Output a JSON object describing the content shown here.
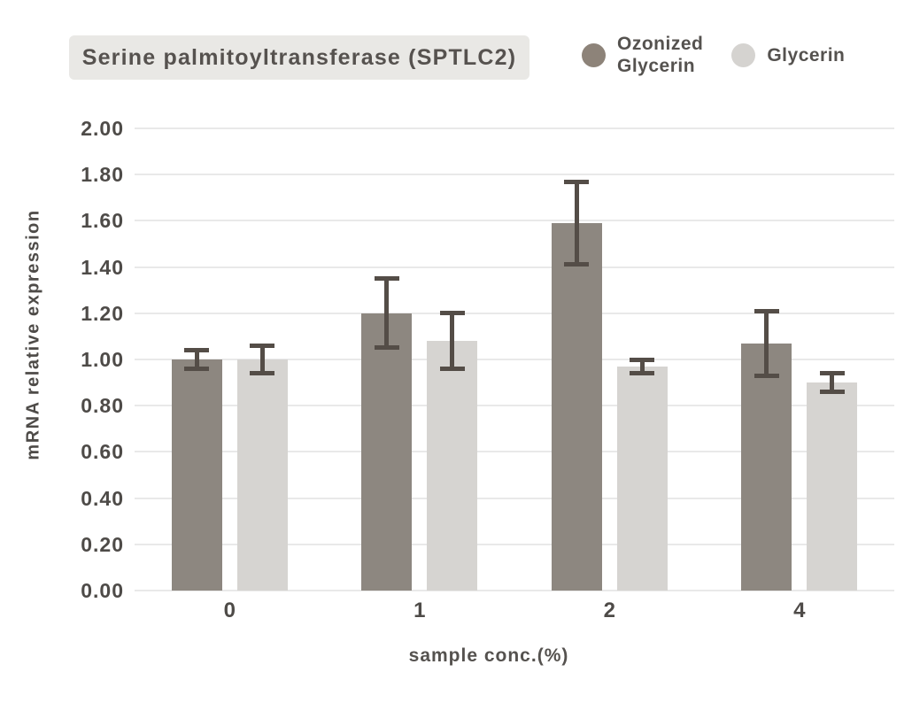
{
  "title": {
    "label": "Serine palmitoyltransferase (SPTLC2)"
  },
  "legend": {
    "items": [
      {
        "line1": "Ozonized",
        "line2": "Glycerin",
        "color": "#8d8379"
      },
      {
        "line1": "Glycerin",
        "line2": "",
        "color": "#d5d3d0"
      }
    ]
  },
  "chart_data": {
    "type": "bar",
    "title": "Serine palmitoyltransferase (SPTLC2)",
    "categories": [
      "0",
      "1",
      "2",
      "4"
    ],
    "series": [
      {
        "name": "Ozonized Glycerin",
        "color": "#8d8780",
        "values": [
          1.0,
          1.2,
          1.59,
          1.07
        ],
        "errors": [
          0.04,
          0.15,
          0.18,
          0.14
        ]
      },
      {
        "name": "Glycerin",
        "color": "#d6d4d1",
        "values": [
          1.0,
          1.08,
          0.97,
          0.9
        ],
        "errors": [
          0.06,
          0.12,
          0.03,
          0.04
        ]
      }
    ],
    "xlabel": "sample conc.(%)",
    "ylabel": "mRNA relative expression",
    "ylim": [
      0.0,
      2.0
    ],
    "ytick_step": 0.2,
    "ytick_labels": [
      "0.00",
      "0.20",
      "0.40",
      "0.60",
      "0.80",
      "1.00",
      "1.20",
      "1.40",
      "1.60",
      "1.80",
      "2.00"
    ],
    "grid": true,
    "legend_position": "top-right",
    "error_bar_color": "#544d47",
    "background": "#ffffff"
  }
}
